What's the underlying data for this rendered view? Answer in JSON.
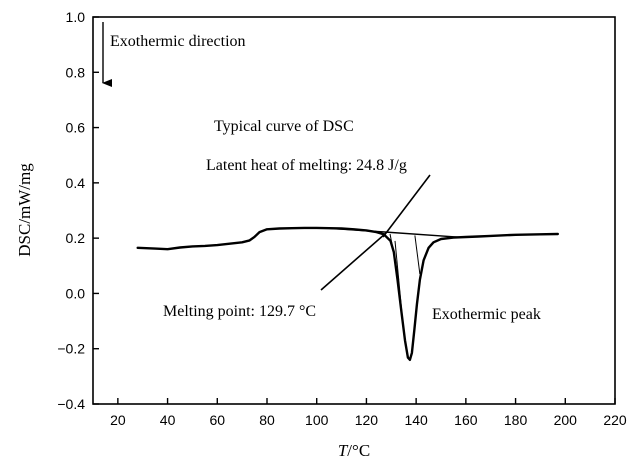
{
  "chart_data": {
    "type": "line",
    "xlabel_italic": "T",
    "xlabel_unit": "/°C",
    "ylabel": "DSC/mW/mg",
    "xlim": [
      10,
      220
    ],
    "ylim": [
      -0.4,
      1.0
    ],
    "x_ticks": [
      "20",
      "40",
      "60",
      "80",
      "100",
      "120",
      "140",
      "160",
      "180",
      "200",
      "220"
    ],
    "y_ticks": [
      "1.0",
      "0.8",
      "0.6",
      "0.4",
      "0.2",
      "0.0",
      "−0.2",
      "−0.4"
    ],
    "grid": false,
    "series": [
      {
        "values": [
          [
            28,
            0.165
          ],
          [
            35,
            0.162
          ],
          [
            40,
            0.16
          ],
          [
            45,
            0.166
          ],
          [
            50,
            0.17
          ],
          [
            55,
            0.172
          ],
          [
            60,
            0.175
          ],
          [
            65,
            0.18
          ],
          [
            70,
            0.185
          ],
          [
            73,
            0.192
          ],
          [
            75,
            0.205
          ],
          [
            77,
            0.222
          ],
          [
            80,
            0.232
          ],
          [
            85,
            0.235
          ],
          [
            90,
            0.236
          ],
          [
            95,
            0.237
          ],
          [
            100,
            0.237
          ],
          [
            105,
            0.236
          ],
          [
            110,
            0.235
          ],
          [
            115,
            0.232
          ],
          [
            120,
            0.228
          ],
          [
            124,
            0.222
          ],
          [
            127,
            0.214
          ],
          [
            129.7,
            0.19
          ],
          [
            131,
            0.15
          ],
          [
            132.5,
            0.05
          ],
          [
            134,
            -0.06
          ],
          [
            135.5,
            -0.17
          ],
          [
            136.7,
            -0.232
          ],
          [
            137.5,
            -0.24
          ],
          [
            138.3,
            -0.215
          ],
          [
            139.3,
            -0.13
          ],
          [
            140.3,
            -0.04
          ],
          [
            141.5,
            0.05
          ],
          [
            143,
            0.12
          ],
          [
            145,
            0.165
          ],
          [
            147,
            0.185
          ],
          [
            150,
            0.197
          ],
          [
            155,
            0.202
          ],
          [
            160,
            0.204
          ],
          [
            165,
            0.206
          ],
          [
            170,
            0.208
          ],
          [
            180,
            0.212
          ],
          [
            190,
            0.214
          ],
          [
            197,
            0.215
          ]
        ]
      }
    ],
    "annotations": {
      "exo_direction": "Exothermic direction",
      "typical_curve": "Typical curve of DSC",
      "latent_heat": "Latent heat of melting: 24.8 J/g",
      "melting_point": "Melting point: 129.7 °C",
      "exo_peak": "Exothermic peak"
    }
  }
}
